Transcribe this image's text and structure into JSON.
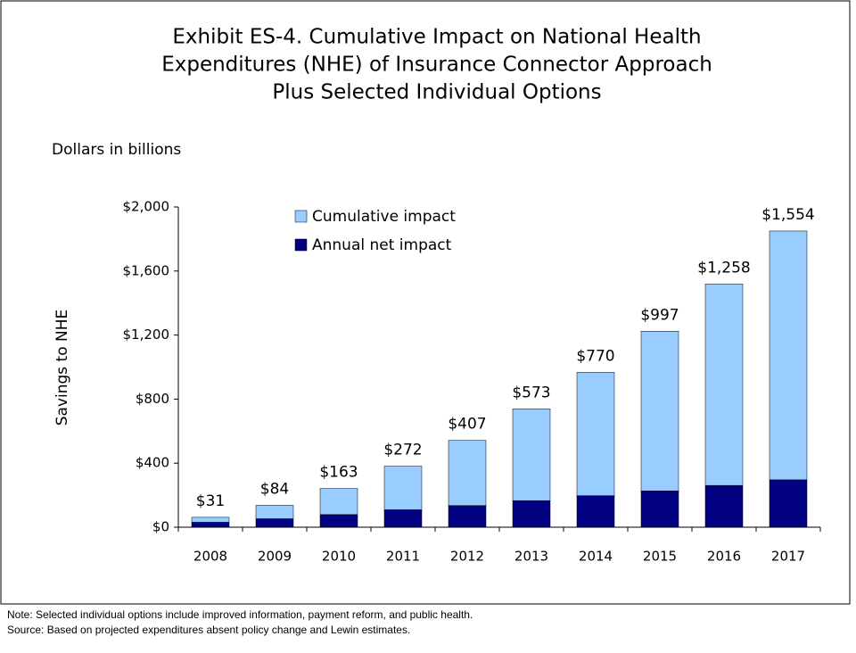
{
  "chart_data": {
    "type": "stacked_bar",
    "title": [
      "Exhibit ES-4. Cumulative Impact on National Health",
      "Expenditures (NHE) of Insurance Connector Approach",
      "Plus Selected Individual Options"
    ],
    "subtitle": "Dollars in billions",
    "y_label": "Savings to NHE",
    "categories": [
      "2008",
      "2009",
      "2010",
      "2011",
      "2012",
      "2013",
      "2014",
      "2015",
      "2016",
      "2017"
    ],
    "series": [
      {
        "name": "Annual net impact",
        "color": "#000080",
        "values": [
          31,
          53,
          79,
          109,
          135,
          166,
          197,
          227,
          261,
          296
        ]
      },
      {
        "name": "Cumulative impact",
        "color": "#99ccff",
        "values": [
          31,
          84,
          163,
          272,
          407,
          573,
          770,
          997,
          1258,
          1554
        ],
        "value_labels": [
          "$31",
          "$84",
          "$163",
          "$272",
          "$407",
          "$573",
          "$770",
          "$997",
          "$1,258",
          "$1,554"
        ]
      }
    ],
    "ylim": [
      0,
      2000
    ],
    "yticks": [
      {
        "value": 0,
        "label": "$0"
      },
      {
        "value": 400,
        "label": "$400"
      },
      {
        "value": 800,
        "label": "$800"
      },
      {
        "value": 1200,
        "label": "$1,200"
      },
      {
        "value": 1600,
        "label": "$1,600"
      },
      {
        "value": 2000,
        "label": "$2,000"
      }
    ],
    "notes": [
      "Note: Selected individual options include improved information, payment reform, and public health.",
      "Source: Based on projected expenditures absent policy change and Lewin estimates."
    ]
  }
}
